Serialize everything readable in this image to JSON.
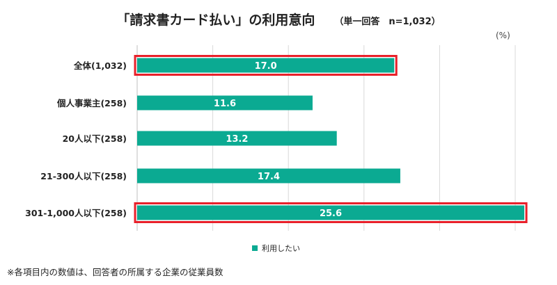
{
  "title": {
    "main": "「請求書カード払い」の利用意向",
    "sub": "（単一回答　n=1,032）"
  },
  "unit_label": "(%)",
  "footnote": "※各項目内の数値は、回答者の所属する企業の従業員数",
  "colors": {
    "bar": "#0baa92",
    "highlight": "#e8202a",
    "grid": "#d9d9d9",
    "axis": "#bfbfbf"
  },
  "chart_data": {
    "type": "bar",
    "orientation": "horizontal",
    "categories": [
      "全体(1,032)",
      "個人事業主(258)",
      "20人以下(258)",
      "21-300人以下(258)",
      "301-1,000人以下(258)"
    ],
    "series": [
      {
        "name": "利用したい",
        "values": [
          17.0,
          11.6,
          13.2,
          17.4,
          25.6
        ]
      }
    ],
    "value_labels": [
      "17.0",
      "11.6",
      "13.2",
      "17.4",
      "25.6"
    ],
    "xlim": [
      0,
      25
    ],
    "grid": true,
    "legend_position": "bottom",
    "highlighted_categories": [
      "全体(1,032)",
      "301-1,000人以下(258)"
    ],
    "unit": "%"
  }
}
